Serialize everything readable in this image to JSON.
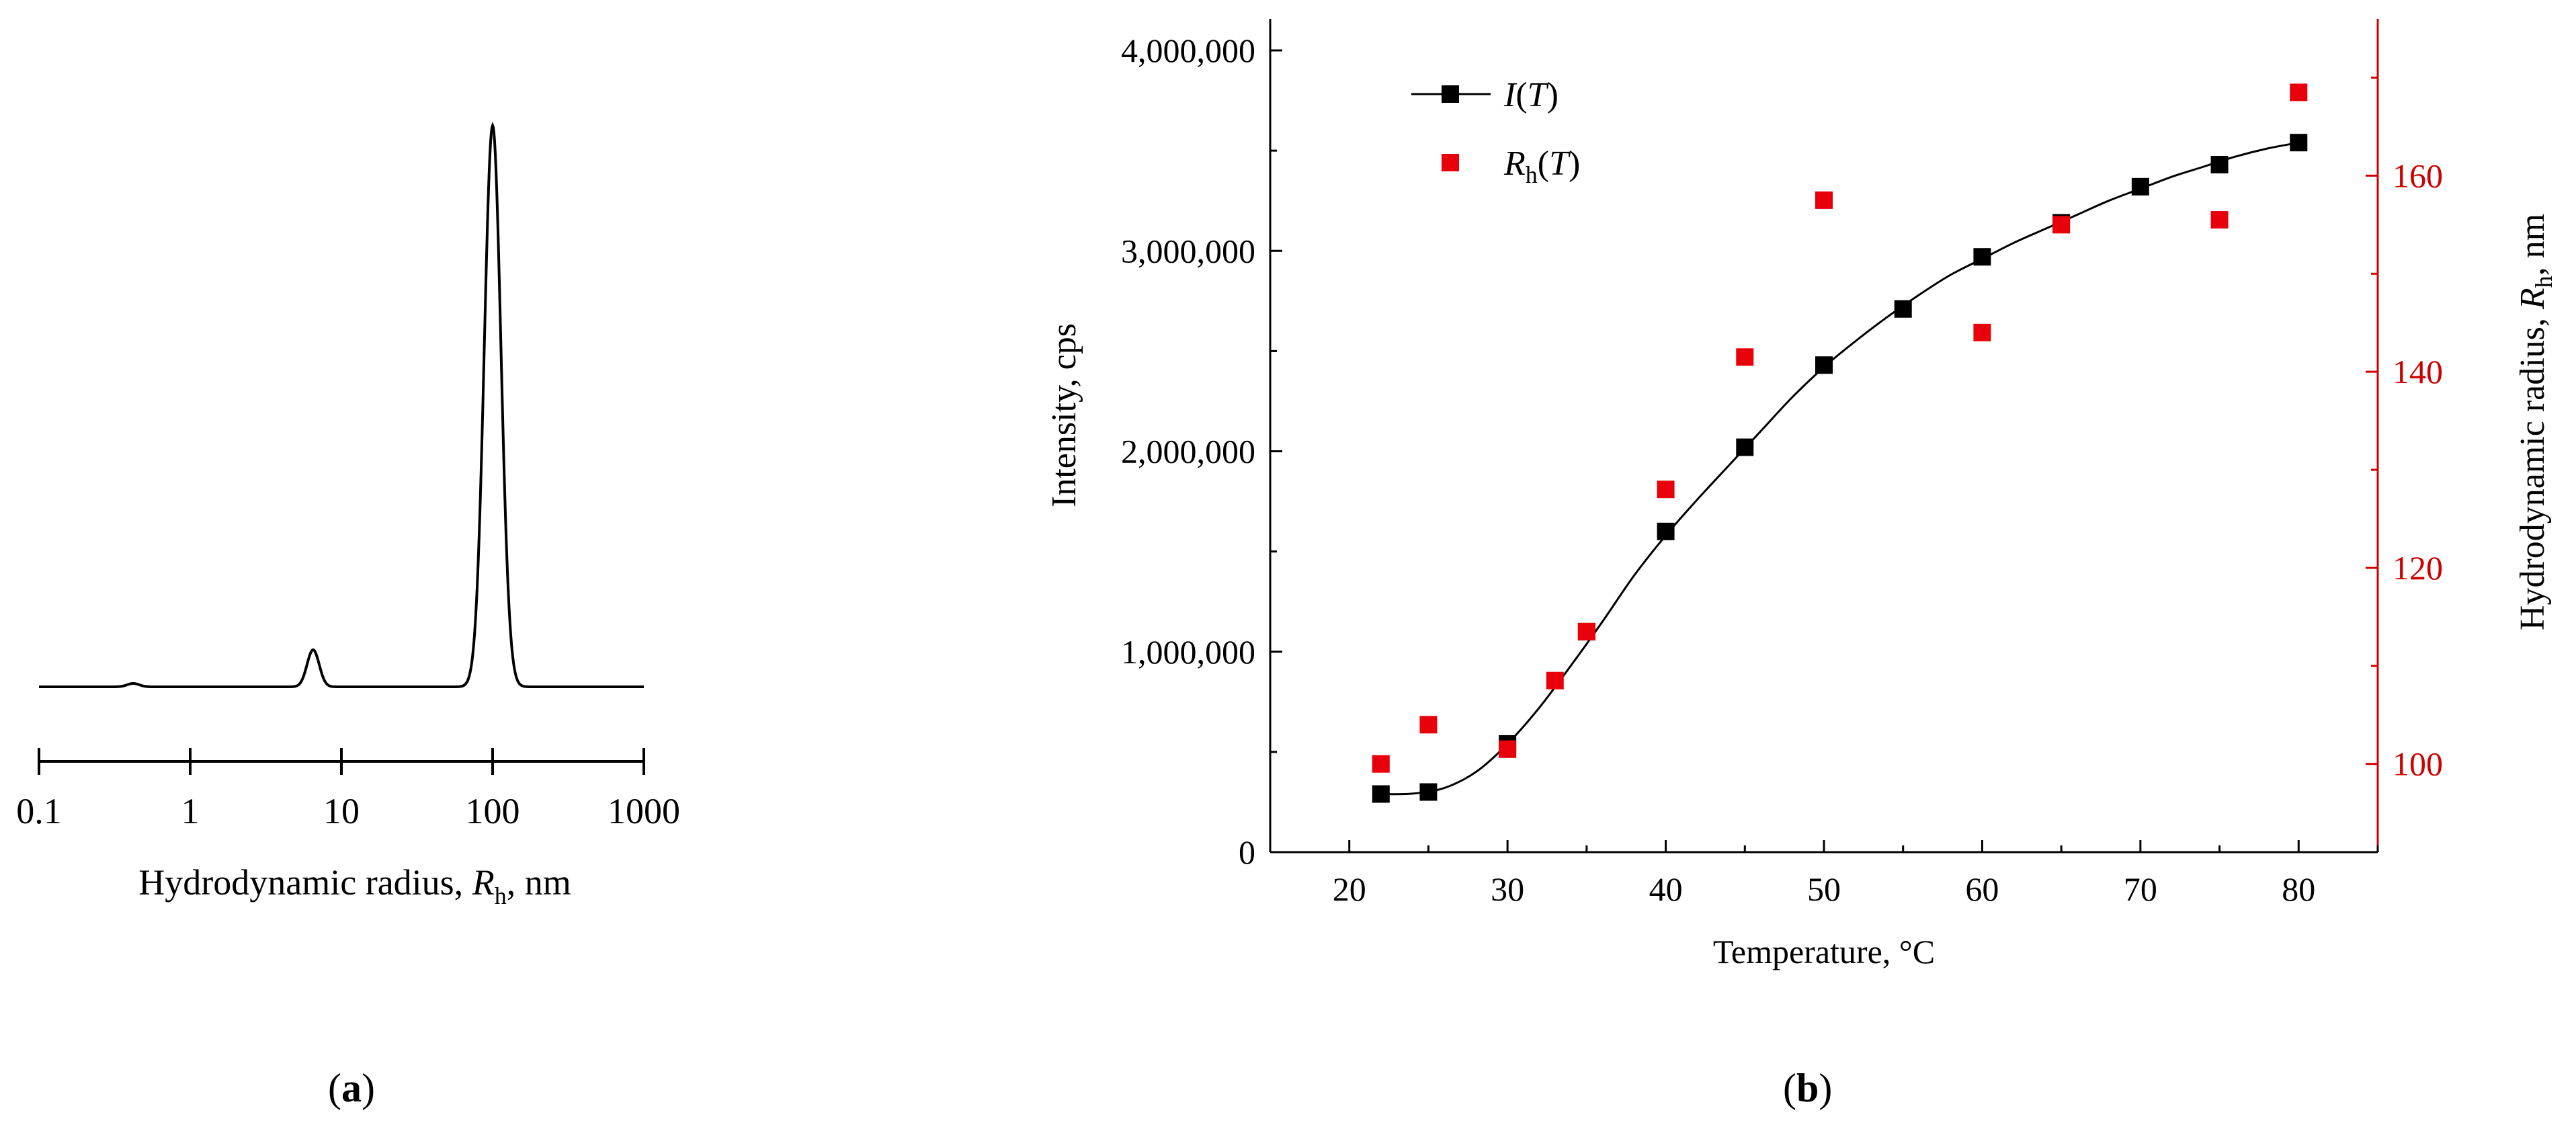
{
  "panel_labels": {
    "a": "a",
    "b": "b"
  },
  "chart_data": [
    {
      "id": "a",
      "type": "line",
      "xscale": "log",
      "xlim": [
        0.1,
        1000
      ],
      "ticks": [
        {
          "value": 0.1,
          "label": "0.1"
        },
        {
          "value": 1,
          "label": "1"
        },
        {
          "value": 10,
          "label": "10"
        },
        {
          "value": 100,
          "label": "100"
        },
        {
          "value": 1000,
          "label": "1000"
        }
      ],
      "xlabel": {
        "prefix": "Hydrodynamic radius, ",
        "var": "R",
        "sub": "h",
        "suffix": ", nm"
      },
      "ylabel": "",
      "y_axis_visible": false,
      "peaks": [
        {
          "center": 0.42,
          "height": 0.006,
          "width_log10": 0.04
        },
        {
          "center": 6.5,
          "height": 0.066,
          "width_log10": 0.04
        },
        {
          "center": 100,
          "height": 1.0,
          "width_log10": 0.055
        }
      ],
      "ylim": [
        0,
        1.08
      ]
    },
    {
      "id": "b",
      "type": "scatter+line",
      "xlabel": "Temperature, °C",
      "xlim": [
        15,
        85
      ],
      "xticks": [
        20,
        30,
        40,
        50,
        60,
        70,
        80
      ],
      "y_left": {
        "label": "Intensity, cps",
        "lim": [
          0,
          4000000
        ],
        "ticks": [
          {
            "value": 0,
            "label": "0"
          },
          {
            "value": 1000000,
            "label": "1,000,000"
          },
          {
            "value": 2000000,
            "label": "2,000,000"
          },
          {
            "value": 3000000,
            "label": "3,000,000"
          },
          {
            "value": 4000000,
            "label": "4,000,000"
          }
        ],
        "color": "#000000"
      },
      "y_right": {
        "label": {
          "prefix": "Hydrodynamic radius, ",
          "var": "R",
          "sub": "h",
          "suffix": ", nm"
        },
        "lim": [
          91,
          176
        ],
        "ticks": [
          {
            "value": 100,
            "label": "100"
          },
          {
            "value": 120,
            "label": "120"
          },
          {
            "value": 140,
            "label": "140"
          },
          {
            "value": 160,
            "label": "160"
          }
        ],
        "color": "#cc0000"
      },
      "series": [
        {
          "name": "I(T)",
          "legend": {
            "var": "I",
            "arg": "T"
          },
          "axis": "left",
          "color": "#000000",
          "marker": "square",
          "x": [
            22,
            25,
            30,
            35,
            40,
            45,
            50,
            55,
            60,
            65,
            70,
            75,
            80
          ],
          "y": [
            290000,
            300000,
            540000,
            1100000,
            1600000,
            2020000,
            2430000,
            2710000,
            2970000,
            3140000,
            3320000,
            3430000,
            3540000
          ]
        },
        {
          "name": "Rh(T)",
          "legend": {
            "var": "R",
            "sub": "h",
            "arg": "T"
          },
          "axis": "right",
          "color": "#e8000b",
          "marker": "square",
          "x": [
            22,
            25,
            30,
            33,
            35,
            40,
            45,
            50,
            60,
            65,
            75,
            80
          ],
          "y": [
            100,
            104,
            101.5,
            108.5,
            113.5,
            128,
            141.5,
            157.5,
            144,
            155,
            155.5,
            168.5
          ]
        }
      ],
      "fit_curve": {
        "axis": "left",
        "x": [
          22,
          24,
          26,
          28,
          30,
          32,
          34,
          36,
          38,
          40,
          42,
          44,
          46,
          48,
          50,
          52,
          54,
          56,
          58,
          60,
          62,
          64,
          66,
          68,
          70,
          72,
          74,
          76,
          78,
          80
        ],
        "y": [
          290000,
          292000,
          320000,
          400000,
          540000,
          720000,
          930000,
          1150000,
          1380000,
          1580000,
          1760000,
          1930000,
          2100000,
          2270000,
          2420000,
          2550000,
          2670000,
          2780000,
          2880000,
          2960000,
          3040000,
          3110000,
          3180000,
          3250000,
          3310000,
          3370000,
          3420000,
          3470000,
          3510000,
          3540000
        ]
      }
    }
  ]
}
